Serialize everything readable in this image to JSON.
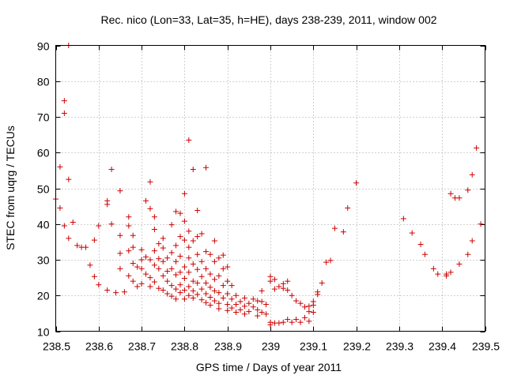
{
  "chart_data": {
    "type": "scatter",
    "title": "Rec. nico (Lon=33, Lat=35, h=HE), days 238-239, 2011, window 002",
    "xlabel": "GPS time / Days of year 2011",
    "ylabel": "STEC from uqrg / TECUs",
    "xlim": [
      238.5,
      239.5
    ],
    "ylim": [
      10,
      90
    ],
    "x_ticks": [
      238.5,
      238.6,
      238.7,
      238.8,
      238.9,
      239.0,
      239.1,
      239.2,
      239.3,
      239.4,
      239.5
    ],
    "x_tick_labels": [
      "238.5",
      "238.6",
      "238.7",
      "238.8",
      "238.9",
      "239",
      "239.1",
      "239.2",
      "239.3",
      "239.4",
      "239.5"
    ],
    "y_ticks": [
      10,
      20,
      30,
      40,
      50,
      60,
      70,
      80,
      90
    ],
    "y_tick_labels": [
      "10",
      "20",
      "30",
      "40",
      "50",
      "60",
      "70",
      "80",
      "90"
    ],
    "grid": true,
    "marker": "+",
    "color": "#cc0000",
    "points": [
      [
        238.5,
        47
      ],
      [
        238.51,
        44.5
      ],
      [
        238.51,
        56
      ],
      [
        238.52,
        74.5
      ],
      [
        238.52,
        71
      ],
      [
        238.53,
        90
      ],
      [
        238.53,
        52.5
      ],
      [
        238.53,
        36
      ],
      [
        238.52,
        39.5
      ],
      [
        238.54,
        40.5
      ],
      [
        238.55,
        34
      ],
      [
        238.56,
        33.5
      ],
      [
        238.57,
        33.5
      ],
      [
        238.58,
        28.5
      ],
      [
        238.59,
        25.3
      ],
      [
        238.59,
        35.5
      ],
      [
        238.6,
        39.5
      ],
      [
        238.6,
        23
      ],
      [
        238.62,
        45.5
      ],
      [
        238.62,
        46.5
      ],
      [
        238.62,
        21.5
      ],
      [
        238.63,
        55.3
      ],
      [
        238.63,
        40
      ],
      [
        238.64,
        20.8
      ],
      [
        238.65,
        49.3
      ],
      [
        238.65,
        36.8
      ],
      [
        238.65,
        31.8
      ],
      [
        238.65,
        27.5
      ],
      [
        238.66,
        21
      ],
      [
        238.67,
        42
      ],
      [
        238.67,
        39.5
      ],
      [
        238.67,
        32.5
      ],
      [
        238.67,
        25.5
      ],
      [
        238.68,
        36.8
      ],
      [
        238.68,
        33.5
      ],
      [
        238.68,
        29
      ],
      [
        238.68,
        24
      ],
      [
        238.69,
        22.5
      ],
      [
        238.69,
        28
      ],
      [
        238.7,
        32.8
      ],
      [
        238.7,
        30
      ],
      [
        238.7,
        27.5
      ],
      [
        238.7,
        23.3
      ],
      [
        238.71,
        46.5
      ],
      [
        238.71,
        30.8
      ],
      [
        238.71,
        26
      ],
      [
        238.72,
        51.8
      ],
      [
        238.72,
        44.3
      ],
      [
        238.72,
        30
      ],
      [
        238.72,
        25
      ],
      [
        238.72,
        22.5
      ],
      [
        238.73,
        42
      ],
      [
        238.73,
        38.5
      ],
      [
        238.73,
        32.5
      ],
      [
        238.73,
        28.5
      ],
      [
        238.73,
        23.8
      ],
      [
        238.74,
        34.5
      ],
      [
        238.74,
        30.3
      ],
      [
        238.74,
        27.5
      ],
      [
        238.74,
        22
      ],
      [
        238.75,
        36
      ],
      [
        238.75,
        33.3
      ],
      [
        238.75,
        29.5
      ],
      [
        238.75,
        25.5
      ],
      [
        238.75,
        21.5
      ],
      [
        238.76,
        30.5
      ],
      [
        238.76,
        26.8
      ],
      [
        238.76,
        24
      ],
      [
        238.76,
        20.5
      ],
      [
        238.77,
        39.8
      ],
      [
        238.77,
        32
      ],
      [
        238.77,
        27.5
      ],
      [
        238.77,
        22.8
      ],
      [
        238.77,
        19.8
      ],
      [
        238.78,
        43.5
      ],
      [
        238.78,
        34
      ],
      [
        238.78,
        29.5
      ],
      [
        238.78,
        25.8
      ],
      [
        238.78,
        21.8
      ],
      [
        238.78,
        19
      ],
      [
        238.79,
        43
      ],
      [
        238.79,
        36.5
      ],
      [
        238.79,
        31
      ],
      [
        238.79,
        26.5
      ],
      [
        238.79,
        23
      ],
      [
        238.79,
        20.8
      ],
      [
        238.8,
        48.5
      ],
      [
        238.8,
        40.8
      ],
      [
        238.8,
        35.5
      ],
      [
        238.8,
        28
      ],
      [
        238.8,
        24.8
      ],
      [
        238.8,
        21.5
      ],
      [
        238.8,
        19
      ],
      [
        238.81,
        63.5
      ],
      [
        238.81,
        38
      ],
      [
        238.81,
        33.5
      ],
      [
        238.81,
        30.5
      ],
      [
        238.81,
        26.5
      ],
      [
        238.81,
        22.5
      ],
      [
        238.81,
        20
      ],
      [
        238.82,
        55.3
      ],
      [
        238.82,
        35.3
      ],
      [
        238.82,
        28.8
      ],
      [
        238.82,
        24
      ],
      [
        238.82,
        21.3
      ],
      [
        238.82,
        19.3
      ],
      [
        238.83,
        43.8
      ],
      [
        238.83,
        36.5
      ],
      [
        238.83,
        31.5
      ],
      [
        238.83,
        27.3
      ],
      [
        238.83,
        23.5
      ],
      [
        238.83,
        20.3
      ],
      [
        238.84,
        37.3
      ],
      [
        238.84,
        29.5
      ],
      [
        238.84,
        25.3
      ],
      [
        238.84,
        21.8
      ],
      [
        238.84,
        18.8
      ],
      [
        238.85,
        55.8
      ],
      [
        238.85,
        32.3
      ],
      [
        238.85,
        27.5
      ],
      [
        238.85,
        23.5
      ],
      [
        238.85,
        20.5
      ],
      [
        238.85,
        18
      ],
      [
        238.86,
        31.5
      ],
      [
        238.86,
        26
      ],
      [
        238.86,
        22.3
      ],
      [
        238.86,
        19.5
      ],
      [
        238.86,
        17.3
      ],
      [
        238.87,
        35.3
      ],
      [
        238.87,
        29.5
      ],
      [
        238.87,
        24.5
      ],
      [
        238.87,
        21.3
      ],
      [
        238.87,
        18.5
      ],
      [
        238.88,
        30.5
      ],
      [
        238.88,
        25.5
      ],
      [
        238.88,
        20.8
      ],
      [
        238.88,
        17.8
      ],
      [
        238.88,
        16.3
      ],
      [
        238.89,
        31.3
      ],
      [
        238.89,
        27.5
      ],
      [
        238.89,
        22.8
      ],
      [
        238.89,
        19.3
      ],
      [
        238.9,
        28
      ],
      [
        238.9,
        24
      ],
      [
        238.9,
        20.5
      ],
      [
        238.9,
        17.5
      ],
      [
        238.9,
        15.8
      ],
      [
        238.91,
        22.8
      ],
      [
        238.91,
        19
      ],
      [
        238.91,
        16.5
      ],
      [
        238.92,
        20
      ],
      [
        238.92,
        17.5
      ],
      [
        238.92,
        15.3
      ],
      [
        238.93,
        18.3
      ],
      [
        238.93,
        16
      ],
      [
        238.94,
        19.3
      ],
      [
        238.94,
        17
      ],
      [
        238.94,
        14.8
      ],
      [
        238.95,
        17.8
      ],
      [
        238.95,
        15.5
      ],
      [
        238.96,
        19
      ],
      [
        238.96,
        16.8
      ],
      [
        238.97,
        18.5
      ],
      [
        238.97,
        16
      ],
      [
        238.97,
        14.3
      ],
      [
        238.98,
        21.3
      ],
      [
        238.98,
        18.3
      ],
      [
        238.98,
        15.3
      ],
      [
        238.99,
        17.5
      ],
      [
        238.99,
        14.8
      ],
      [
        239.0,
        25.3
      ],
      [
        239.0,
        24
      ],
      [
        239.0,
        12.5
      ],
      [
        239.0,
        11.8
      ],
      [
        239.01,
        24.5
      ],
      [
        239.01,
        21.8
      ],
      [
        239.01,
        12.3
      ],
      [
        239.02,
        22.5
      ],
      [
        239.02,
        12.3
      ],
      [
        239.03,
        23.3
      ],
      [
        239.03,
        22
      ],
      [
        239.03,
        12.5
      ],
      [
        239.04,
        24
      ],
      [
        239.04,
        21.5
      ],
      [
        239.04,
        13.3
      ],
      [
        239.05,
        20
      ],
      [
        239.05,
        12.5
      ],
      [
        239.06,
        18.5
      ],
      [
        239.06,
        13.3
      ],
      [
        239.07,
        17.8
      ],
      [
        239.07,
        12.5
      ],
      [
        239.08,
        16.8
      ],
      [
        239.08,
        13.8
      ],
      [
        239.09,
        15.5
      ],
      [
        239.09,
        12.8
      ],
      [
        239.09,
        17
      ],
      [
        239.1,
        15.3
      ],
      [
        239.1,
        17.3
      ],
      [
        239.1,
        18.3
      ],
      [
        239.11,
        20.3
      ],
      [
        239.11,
        21
      ],
      [
        239.12,
        23.5
      ],
      [
        239.13,
        29.3
      ],
      [
        239.14,
        29.8
      ],
      [
        239.15,
        38.8
      ],
      [
        239.17,
        37.8
      ],
      [
        239.18,
        44.5
      ],
      [
        239.2,
        51.5
      ],
      [
        239.31,
        41.5
      ],
      [
        239.33,
        37.5
      ],
      [
        239.35,
        34.3
      ],
      [
        239.36,
        31.5
      ],
      [
        239.38,
        27.5
      ],
      [
        239.39,
        26
      ],
      [
        239.41,
        25.5
      ],
      [
        239.41,
        26
      ],
      [
        239.42,
        48.5
      ],
      [
        239.42,
        26.5
      ],
      [
        239.43,
        47.3
      ],
      [
        239.44,
        47.3
      ],
      [
        239.44,
        28.8
      ],
      [
        239.46,
        49.5
      ],
      [
        239.46,
        31.5
      ],
      [
        239.47,
        53.8
      ],
      [
        239.47,
        35.3
      ],
      [
        239.48,
        61.3
      ],
      [
        239.49,
        40
      ]
    ]
  }
}
